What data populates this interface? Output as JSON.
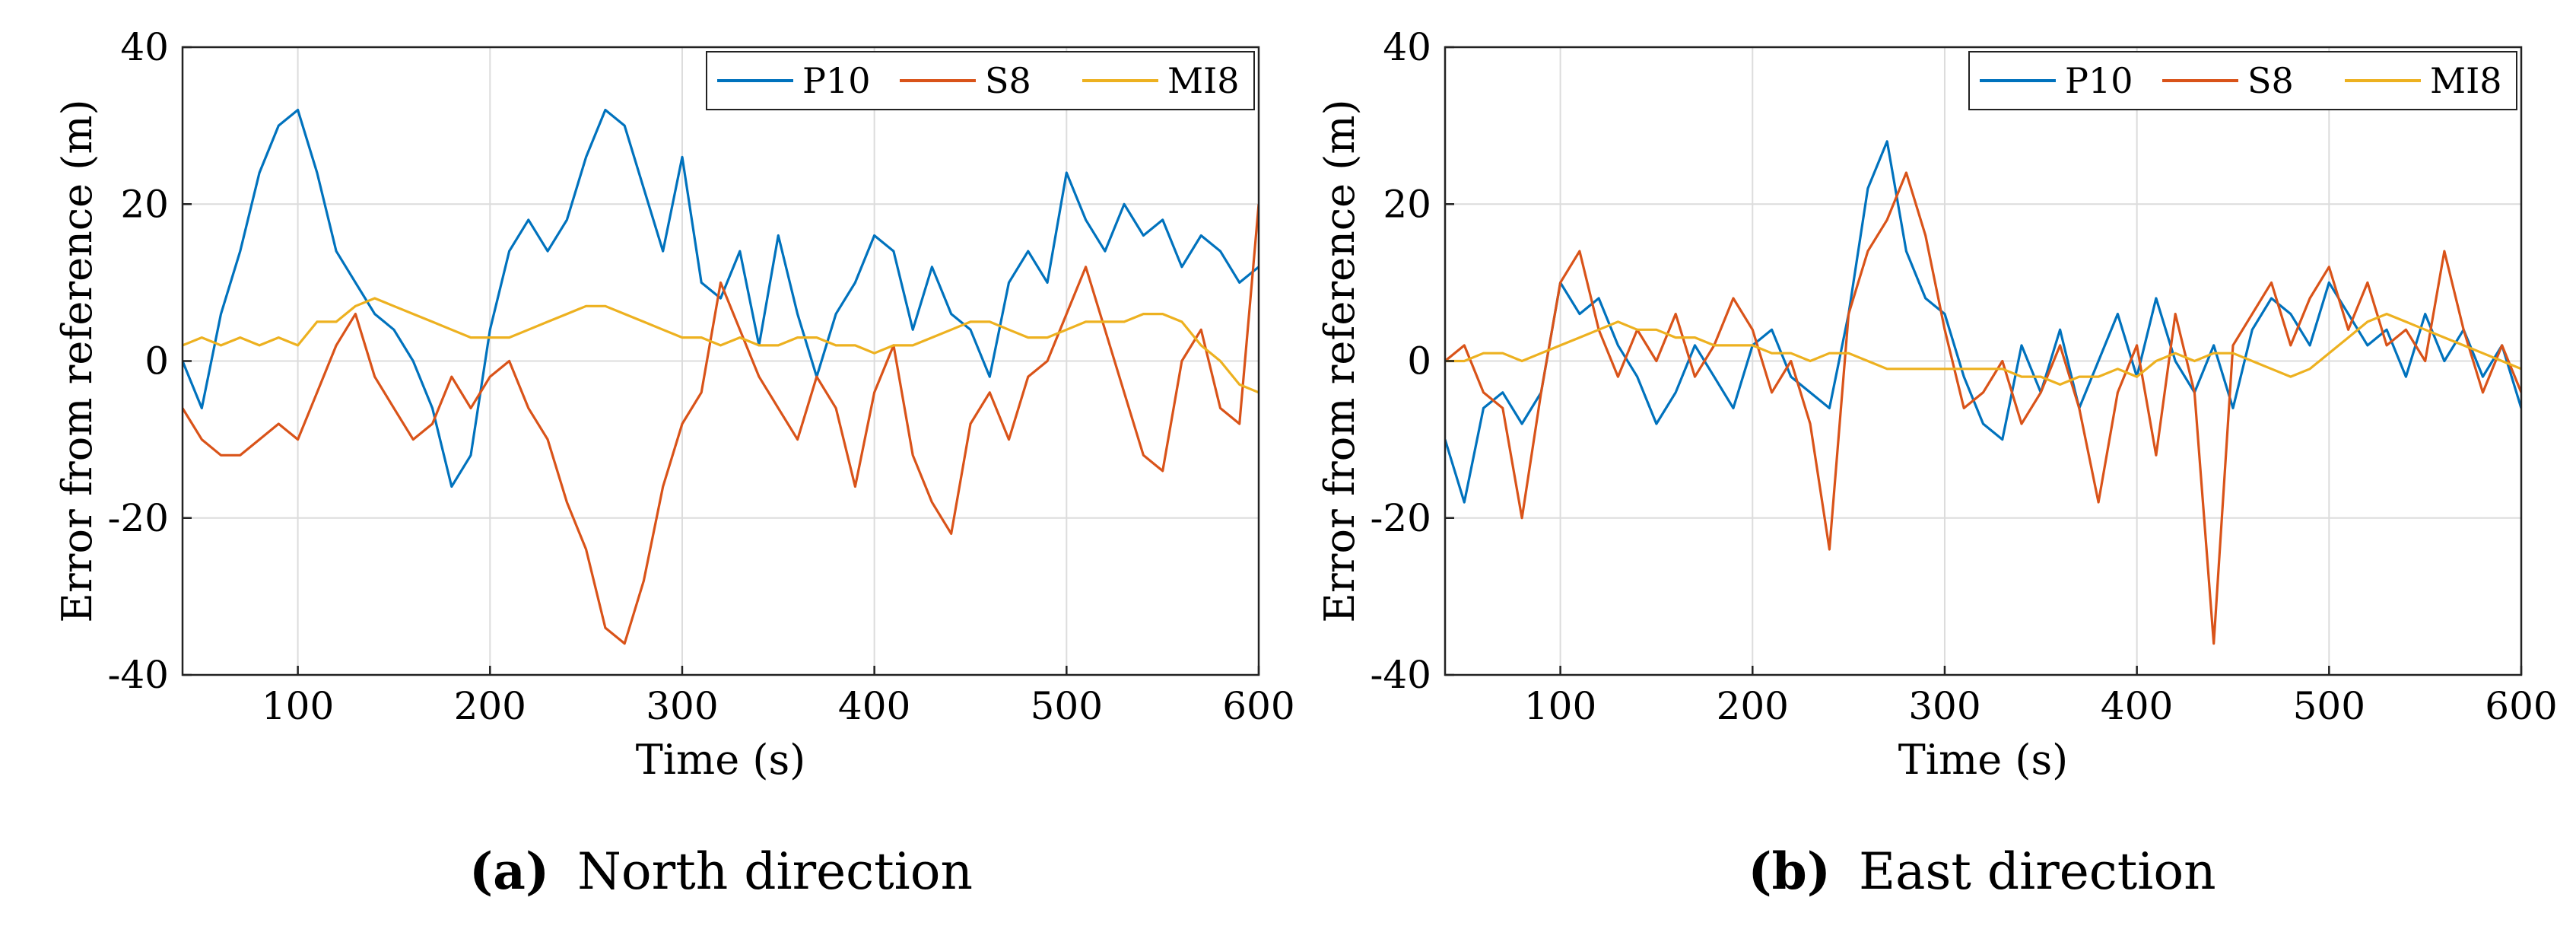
{
  "chart_data": [
    {
      "type": "line",
      "panel": "a",
      "caption_letter": "(a)",
      "caption_text": "North direction",
      "xlabel": "Time (s)",
      "ylabel": "Error from reference (m)",
      "xlim": [
        40,
        600
      ],
      "ylim": [
        -40,
        40
      ],
      "xticks": [
        100,
        200,
        300,
        400,
        500,
        600
      ],
      "xtick_labels": [
        "100",
        "200",
        "300",
        "400",
        "500",
        "600"
      ],
      "yticks": [
        -40,
        -20,
        0,
        20,
        40
      ],
      "ytick_labels": [
        "-40",
        "-20",
        "0",
        "20",
        "40"
      ],
      "grid": true,
      "legend_position": "top-right",
      "legend_layout": "horizontal",
      "series": [
        {
          "name": "P10",
          "color": "#0072BD",
          "x": [
            40,
            50,
            60,
            70,
            80,
            90,
            100,
            110,
            120,
            130,
            140,
            150,
            160,
            170,
            180,
            190,
            200,
            210,
            220,
            230,
            240,
            250,
            260,
            270,
            280,
            290,
            300,
            310,
            320,
            330,
            340,
            350,
            360,
            370,
            380,
            390,
            400,
            410,
            420,
            430,
            440,
            450,
            460,
            470,
            480,
            490,
            500,
            510,
            520,
            530,
            540,
            550,
            560,
            570,
            580,
            590,
            600
          ],
          "values": [
            0,
            -6,
            6,
            14,
            24,
            30,
            32,
            24,
            14,
            10,
            6,
            4,
            0,
            -6,
            -16,
            -12,
            4,
            14,
            18,
            14,
            18,
            26,
            32,
            30,
            22,
            14,
            26,
            10,
            8,
            14,
            2,
            16,
            6,
            -2,
            6,
            10,
            16,
            14,
            4,
            12,
            6,
            4,
            -2,
            10,
            14,
            10,
            24,
            18,
            14,
            20,
            16,
            18,
            12,
            16,
            14,
            10,
            12
          ]
        },
        {
          "name": "S8",
          "color": "#D95319",
          "x": [
            40,
            50,
            60,
            70,
            80,
            90,
            100,
            110,
            120,
            130,
            140,
            150,
            160,
            170,
            180,
            190,
            200,
            210,
            220,
            230,
            240,
            250,
            260,
            270,
            280,
            290,
            300,
            310,
            320,
            330,
            340,
            350,
            360,
            370,
            380,
            390,
            400,
            410,
            420,
            430,
            440,
            450,
            460,
            470,
            480,
            490,
            500,
            510,
            520,
            530,
            540,
            550,
            560,
            570,
            580,
            590,
            600
          ],
          "values": [
            -6,
            -10,
            -12,
            -12,
            -10,
            -8,
            -10,
            -4,
            2,
            6,
            -2,
            -6,
            -10,
            -8,
            -2,
            -6,
            -2,
            0,
            -6,
            -10,
            -18,
            -24,
            -34,
            -36,
            -28,
            -16,
            -8,
            -4,
            10,
            4,
            -2,
            -6,
            -10,
            -2,
            -6,
            -16,
            -4,
            2,
            -12,
            -18,
            -22,
            -8,
            -4,
            -10,
            -2,
            0,
            6,
            12,
            4,
            -4,
            -12,
            -14,
            0,
            4,
            -6,
            -8,
            20
          ]
        },
        {
          "name": "MI8",
          "color": "#EDB120",
          "x": [
            40,
            50,
            60,
            70,
            80,
            90,
            100,
            110,
            120,
            130,
            140,
            150,
            160,
            170,
            180,
            190,
            200,
            210,
            220,
            230,
            240,
            250,
            260,
            270,
            280,
            290,
            300,
            310,
            320,
            330,
            340,
            350,
            360,
            370,
            380,
            390,
            400,
            410,
            420,
            430,
            440,
            450,
            460,
            470,
            480,
            490,
            500,
            510,
            520,
            530,
            540,
            550,
            560,
            570,
            580,
            590,
            600
          ],
          "values": [
            2,
            3,
            2,
            3,
            2,
            3,
            2,
            5,
            5,
            7,
            8,
            7,
            6,
            5,
            4,
            3,
            3,
            3,
            4,
            5,
            6,
            7,
            7,
            6,
            5,
            4,
            3,
            3,
            2,
            3,
            2,
            2,
            3,
            3,
            2,
            2,
            1,
            2,
            2,
            3,
            4,
            5,
            5,
            4,
            3,
            3,
            4,
            5,
            5,
            5,
            6,
            6,
            5,
            2,
            0,
            -3,
            -4
          ]
        }
      ]
    },
    {
      "type": "line",
      "panel": "b",
      "caption_letter": "(b)",
      "caption_text": "East direction",
      "xlabel": "Time (s)",
      "ylabel": "Error from reference (m)",
      "xlim": [
        40,
        600
      ],
      "ylim": [
        -40,
        40
      ],
      "xticks": [
        100,
        200,
        300,
        400,
        500,
        600
      ],
      "xtick_labels": [
        "100",
        "200",
        "300",
        "400",
        "500",
        "600"
      ],
      "yticks": [
        -40,
        -20,
        0,
        20,
        40
      ],
      "ytick_labels": [
        "-40",
        "-20",
        "0",
        "20",
        "40"
      ],
      "grid": true,
      "legend_position": "top-right",
      "legend_layout": "horizontal",
      "series": [
        {
          "name": "P10",
          "color": "#0072BD",
          "x": [
            40,
            50,
            60,
            70,
            80,
            90,
            100,
            110,
            120,
            130,
            140,
            150,
            160,
            170,
            180,
            190,
            200,
            210,
            220,
            230,
            240,
            250,
            260,
            270,
            280,
            290,
            300,
            310,
            320,
            330,
            340,
            350,
            360,
            370,
            380,
            390,
            400,
            410,
            420,
            430,
            440,
            450,
            460,
            470,
            480,
            490,
            500,
            510,
            520,
            530,
            540,
            550,
            560,
            570,
            580,
            590,
            600
          ],
          "values": [
            -10,
            -18,
            -6,
            -4,
            -8,
            -4,
            10,
            6,
            8,
            2,
            -2,
            -8,
            -4,
            2,
            -2,
            -6,
            2,
            4,
            -2,
            -4,
            -6,
            6,
            22,
            28,
            14,
            8,
            6,
            -2,
            -8,
            -10,
            2,
            -4,
            4,
            -6,
            0,
            6,
            -2,
            8,
            0,
            -4,
            2,
            -6,
            4,
            8,
            6,
            2,
            10,
            6,
            2,
            4,
            -2,
            6,
            0,
            4,
            -2,
            2,
            -6
          ]
        },
        {
          "name": "S8",
          "color": "#D95319",
          "x": [
            40,
            50,
            60,
            70,
            80,
            90,
            100,
            110,
            120,
            130,
            140,
            150,
            160,
            170,
            180,
            190,
            200,
            210,
            220,
            230,
            240,
            250,
            260,
            270,
            280,
            290,
            300,
            310,
            320,
            330,
            340,
            350,
            360,
            370,
            380,
            390,
            400,
            410,
            420,
            430,
            440,
            450,
            460,
            470,
            480,
            490,
            500,
            510,
            520,
            530,
            540,
            550,
            560,
            570,
            580,
            590,
            600
          ],
          "values": [
            0,
            2,
            -4,
            -6,
            -20,
            -4,
            10,
            14,
            4,
            -2,
            4,
            0,
            6,
            -2,
            2,
            8,
            4,
            -4,
            0,
            -8,
            -24,
            6,
            14,
            18,
            24,
            16,
            4,
            -6,
            -4,
            0,
            -8,
            -4,
            2,
            -6,
            -18,
            -4,
            2,
            -12,
            6,
            -4,
            -36,
            2,
            6,
            10,
            2,
            8,
            12,
            4,
            10,
            2,
            4,
            0,
            14,
            4,
            -4,
            2,
            -4
          ]
        },
        {
          "name": "MI8",
          "color": "#EDB120",
          "x": [
            40,
            50,
            60,
            70,
            80,
            90,
            100,
            110,
            120,
            130,
            140,
            150,
            160,
            170,
            180,
            190,
            200,
            210,
            220,
            230,
            240,
            250,
            260,
            270,
            280,
            290,
            300,
            310,
            320,
            330,
            340,
            350,
            360,
            370,
            380,
            390,
            400,
            410,
            420,
            430,
            440,
            450,
            460,
            470,
            480,
            490,
            500,
            510,
            520,
            530,
            540,
            550,
            560,
            570,
            580,
            590,
            600
          ],
          "values": [
            0,
            0,
            1,
            1,
            0,
            1,
            2,
            3,
            4,
            5,
            4,
            4,
            3,
            3,
            2,
            2,
            2,
            1,
            1,
            0,
            1,
            1,
            0,
            -1,
            -1,
            -1,
            -1,
            -1,
            -1,
            -1,
            -2,
            -2,
            -3,
            -2,
            -2,
            -1,
            -2,
            0,
            1,
            0,
            1,
            1,
            0,
            -1,
            -2,
            -1,
            1,
            3,
            5,
            6,
            5,
            4,
            3,
            2,
            1,
            0,
            -1
          ]
        }
      ]
    }
  ]
}
